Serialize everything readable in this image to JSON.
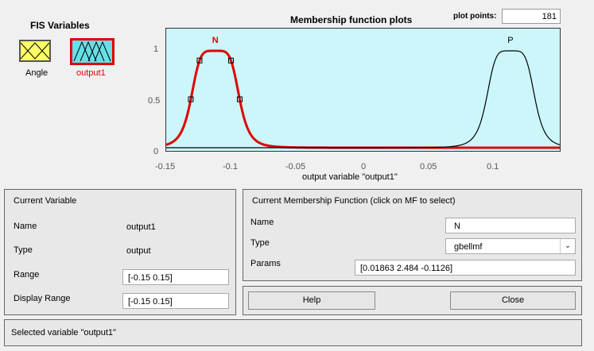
{
  "fis_variables": {
    "title": "FIS Variables",
    "items": [
      {
        "label": "Angle"
      },
      {
        "label": "output1",
        "selected": true
      }
    ]
  },
  "plot": {
    "title": "Membership function plots",
    "plot_points_label": "plot points:",
    "plot_points_value": "181",
    "x_axis_title": "output variable \"output1\"",
    "x_ticks": [
      "-0.15",
      "-0.1",
      "-0.05",
      "0",
      "0.05",
      "0.1"
    ],
    "y_ticks": [
      "0",
      "0.5",
      "1"
    ],
    "mf_labels": {
      "n": "N",
      "p": "P"
    },
    "colors": {
      "background": "#ccf6fa",
      "selected_mf": "#e00000",
      "other_mf": "#000000"
    }
  },
  "chart_data": {
    "type": "line",
    "xlabel": "output variable \"output1\"",
    "xlim": [
      -0.15,
      0.15
    ],
    "ylim": [
      0,
      1.05
    ],
    "series": [
      {
        "name": "N",
        "function": "gbellmf",
        "params": [
          0.01863,
          2.484,
          -0.1126
        ]
      },
      {
        "name": "P",
        "function": "gbellmf",
        "params": [
          0.01863,
          2.484,
          0.1126
        ]
      }
    ]
  },
  "current_variable": {
    "title": "Current Variable",
    "name_label": "Name",
    "name_value": "output1",
    "type_label": "Type",
    "type_value": "output",
    "range_label": "Range",
    "range_value": "[-0.15 0.15]",
    "display_range_label": "Display Range",
    "display_range_value": "[-0.15 0.15]"
  },
  "current_mf": {
    "title": "Current Membership Function (click on MF to select)",
    "name_label": "Name",
    "name_value": "N",
    "type_label": "Type",
    "type_value": "gbellmf",
    "params_label": "Params",
    "params_value": "[0.01863 2.484 -0.1126]"
  },
  "buttons": {
    "help": "Help",
    "close": "Close"
  },
  "status": "Selected variable \"output1\""
}
